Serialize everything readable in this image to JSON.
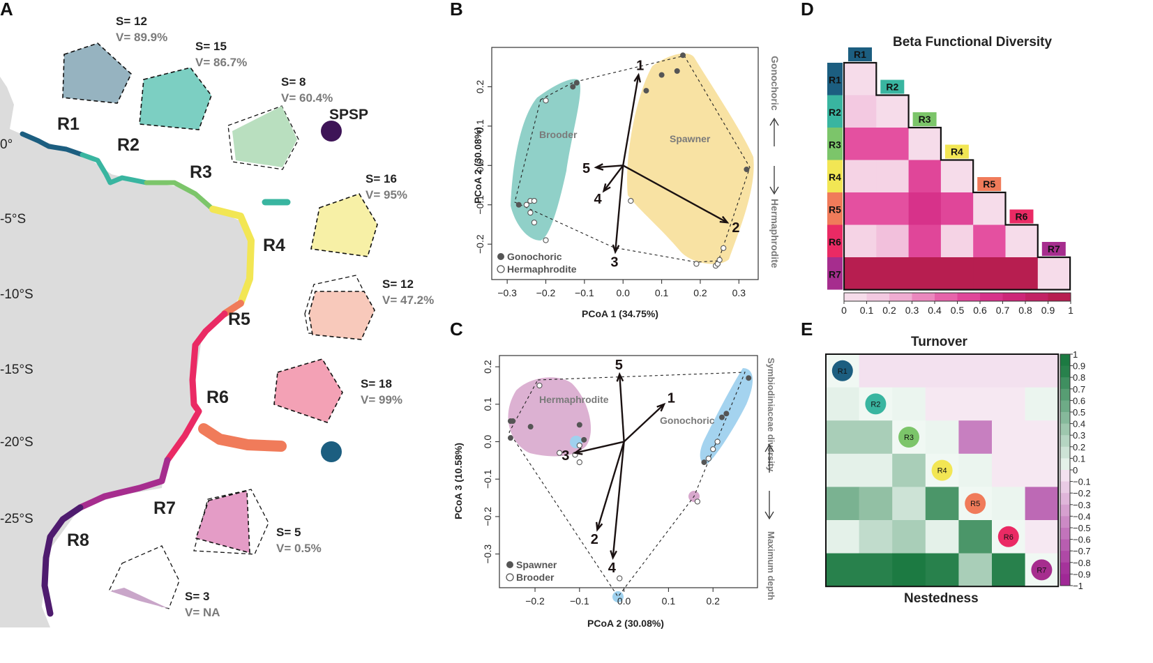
{
  "panel_labels": {
    "a": "A",
    "b": "B",
    "c": "C",
    "d": "D",
    "e": "E"
  },
  "map": {
    "lat_labels": [
      "0°",
      "-5°S",
      "-10°S",
      "-15°S",
      "-20°S",
      "-25°S"
    ],
    "spsp": "SPSP",
    "colors": {
      "R1": "#1c5e80",
      "R2": "#39b5a0",
      "R3": "#7cc56a",
      "R4": "#f2e654",
      "R5": "#f07b5a",
      "R6": "#ea2a64",
      "R7": "#a62d8e",
      "R8": "#4e1b6e",
      "SPSP": "#3e1457"
    },
    "regions": [
      {
        "name": "R1",
        "s": "S= 12",
        "v": "V= 89.9%",
        "fill": "#96b3c0"
      },
      {
        "name": "R2",
        "s": "S= 15",
        "v": "V= 86.7%",
        "fill": "#7ccfc2"
      },
      {
        "name": "R3",
        "s": "S= 8",
        "v": "V= 60.4%",
        "fill": "#b9dfbf"
      },
      {
        "name": "R4",
        "s": "S= 16",
        "v": "V= 95%",
        "fill": "#f7f0a6"
      },
      {
        "name": "R5",
        "s": "S= 12",
        "v": "V= 47.2%",
        "fill": "#f8c9bb"
      },
      {
        "name": "R6",
        "s": "S= 18",
        "v": "V= 99%",
        "fill": "#f3a1b5"
      },
      {
        "name": "R7",
        "s": "S= 5",
        "v": "V= 0.5%",
        "fill": "#e49cc6"
      },
      {
        "name": "R8",
        "s": "S= 3",
        "v": "V= NA",
        "fill": "#c9a6c9"
      }
    ]
  },
  "chart_data": [
    {
      "type": "scatter",
      "panel": "B",
      "xlabel": "PCoA 1 (34.75%)",
      "ylabel": "PCoA 2 (30.08%)",
      "xlim": [
        -0.34,
        0.35
      ],
      "ylim": [
        -0.29,
        0.3
      ],
      "xticks": [
        -0.3,
        -0.2,
        -0.1,
        0.0,
        0.1,
        0.2,
        0.3
      ],
      "xtick_labels": [
        "−0.3",
        "−0.2",
        "−0.1",
        "0.0",
        "0.1",
        "0.2",
        "0.3"
      ],
      "yticks": [
        -0.2,
        -0.1,
        0.0,
        0.1,
        0.2
      ],
      "ytick_labels": [
        "−0.2",
        "−0.1",
        "0.0",
        "0.1",
        "0.2"
      ],
      "group_labels": [
        "Brooder",
        "Spawner"
      ],
      "legend": [
        "Gonochoric",
        "Hermaphrodite"
      ],
      "side_top": "Gonochoric",
      "side_bottom": "Hermaphrodite",
      "series": [
        {
          "name": "Gonochoric",
          "points": [
            [
              -0.27,
              -0.1
            ],
            [
              -0.13,
              0.2
            ],
            [
              -0.12,
              0.21
            ],
            [
              0.06,
              0.19
            ],
            [
              0.1,
              0.23
            ],
            [
              0.14,
              0.24
            ],
            [
              0.155,
              0.28
            ],
            [
              0.32,
              -0.01
            ]
          ]
        },
        {
          "name": "Hermaphrodite",
          "points": [
            [
              -0.2,
              0.165
            ],
            [
              -0.25,
              -0.1
            ],
            [
              -0.24,
              -0.09
            ],
            [
              -0.23,
              -0.09
            ],
            [
              -0.24,
              -0.12
            ],
            [
              -0.23,
              -0.145
            ],
            [
              -0.2,
              -0.19
            ],
            [
              0.02,
              -0.09
            ],
            [
              0.19,
              -0.25
            ],
            [
              0.24,
              -0.255
            ],
            [
              0.245,
              -0.25
            ],
            [
              0.25,
              -0.24
            ],
            [
              0.26,
              -0.21
            ]
          ]
        }
      ],
      "vectors": [
        {
          "label": "1",
          "x": 0.04,
          "y": 0.23
        },
        {
          "label": "2",
          "x": 0.27,
          "y": -0.145
        },
        {
          "label": "3",
          "x": -0.02,
          "y": -0.22
        },
        {
          "label": "4",
          "x": -0.05,
          "y": -0.065
        },
        {
          "label": "5",
          "x": -0.07,
          "y": -0.005
        }
      ]
    },
    {
      "type": "scatter",
      "panel": "C",
      "xlabel": "PCoA 2 (30.08%)",
      "ylabel": "PCoA 3 (10.58%)",
      "xlim": [
        -0.28,
        0.3
      ],
      "ylim": [
        -0.39,
        0.23
      ],
      "xticks": [
        -0.2,
        -0.1,
        0.0,
        0.1,
        0.2
      ],
      "xtick_labels": [
        "−0.2",
        "−0.1",
        "0.0",
        "0.1",
        "0.2"
      ],
      "yticks": [
        -0.3,
        -0.2,
        -0.1,
        0.0,
        0.1,
        0.2
      ],
      "ytick_labels": [
        "−0.3",
        "−0.2",
        "−0.1",
        "0.0",
        "0.1",
        "0.2"
      ],
      "group_labels": [
        "Hermaphrodite",
        "Gonochoric"
      ],
      "legend": [
        "Spawner",
        "Brooder"
      ],
      "side_top": "Symbiodiniaceae diversity",
      "side_bottom": "Maximum depth",
      "series": [
        {
          "name": "Spawner",
          "points": [
            [
              -0.255,
              0.055
            ],
            [
              -0.25,
              0.055
            ],
            [
              -0.255,
              0.01
            ],
            [
              -0.21,
              0.04
            ],
            [
              -0.1,
              0.045
            ],
            [
              -0.09,
              0.005
            ],
            [
              0.18,
              -0.055
            ],
            [
              0.22,
              0.065
            ],
            [
              0.23,
              0.075
            ],
            [
              0.28,
              0.17
            ]
          ]
        },
        {
          "name": "Brooder",
          "points": [
            [
              -0.19,
              0.15
            ],
            [
              -0.145,
              -0.03
            ],
            [
              -0.11,
              -0.035
            ],
            [
              -0.1,
              -0.01
            ],
            [
              -0.1,
              -0.055
            ],
            [
              0.19,
              -0.045
            ],
            [
              0.2,
              -0.02
            ],
            [
              0.21,
              0.0
            ],
            [
              0.165,
              -0.16
            ],
            [
              -0.01,
              -0.365
            ]
          ]
        }
      ],
      "vectors": [
        {
          "label": "1",
          "x": 0.09,
          "y": 0.1
        },
        {
          "label": "2",
          "x": -0.06,
          "y": -0.235
        },
        {
          "label": "3",
          "x": -0.11,
          "y": -0.03
        },
        {
          "label": "4",
          "x": -0.025,
          "y": -0.31
        },
        {
          "label": "5",
          "x": -0.01,
          "y": 0.18
        }
      ]
    },
    {
      "type": "heatmap",
      "panel": "D",
      "title": "Beta Functional Diversity",
      "rows": [
        "R1",
        "R2",
        "R3",
        "R4",
        "R5",
        "R6",
        "R7"
      ],
      "colorbar_ticks": [
        "0",
        "0.1",
        "0.2",
        "0.3",
        "0.4",
        "0.5",
        "0.6",
        "0.7",
        "0.8",
        "0.9",
        "1"
      ],
      "values": [
        [
          0.05,
          null,
          null,
          null,
          null,
          null,
          null
        ],
        [
          0.15,
          0.05,
          null,
          null,
          null,
          null,
          null
        ],
        [
          0.5,
          0.5,
          0.05,
          null,
          null,
          null,
          null
        ],
        [
          0.1,
          0.1,
          0.55,
          0.05,
          null,
          null,
          null
        ],
        [
          0.5,
          0.5,
          0.65,
          0.55,
          0.05,
          null,
          null
        ],
        [
          0.1,
          0.2,
          0.55,
          0.1,
          0.5,
          0.05,
          null
        ],
        [
          0.95,
          0.95,
          0.95,
          0.95,
          0.95,
          0.95,
          0.05
        ]
      ]
    },
    {
      "type": "heatmap",
      "panel": "E",
      "title": "Turnover",
      "bottom_label": "Nestedness",
      "rows": [
        "R1",
        "R2",
        "R3",
        "R4",
        "R5",
        "R6",
        "R7"
      ],
      "colorbar_ticks": [
        "1",
        "0.9",
        "0.8",
        "0.7",
        "0.6",
        "0.5",
        "0.4",
        "0.3",
        "0.2",
        "0.1",
        "0",
        "−0.1",
        "−0.2",
        "−0.3",
        "−0.4",
        "−0.5",
        "−0.6",
        "−0.7",
        "−0.8",
        "−0.9",
        "−1"
      ],
      "values": [
        [
          0,
          -0.05,
          -0.05,
          -0.05,
          -0.05,
          -0.05,
          -0.05
        ],
        [
          0.05,
          0,
          0.02,
          -0.02,
          -0.02,
          -0.02,
          0.02
        ],
        [
          0.3,
          0.3,
          0,
          0.02,
          -0.5,
          -0.02,
          -0.02
        ],
        [
          0.05,
          0.05,
          0.3,
          0,
          0.02,
          -0.02,
          -0.02
        ],
        [
          0.5,
          0.4,
          0.15,
          0.7,
          0,
          0.02,
          -0.6
        ],
        [
          0.05,
          0.2,
          0.3,
          0.05,
          0.7,
          0,
          -0.02
        ],
        [
          0.85,
          0.85,
          0.9,
          0.85,
          0.3,
          0.85,
          0
        ]
      ]
    }
  ]
}
